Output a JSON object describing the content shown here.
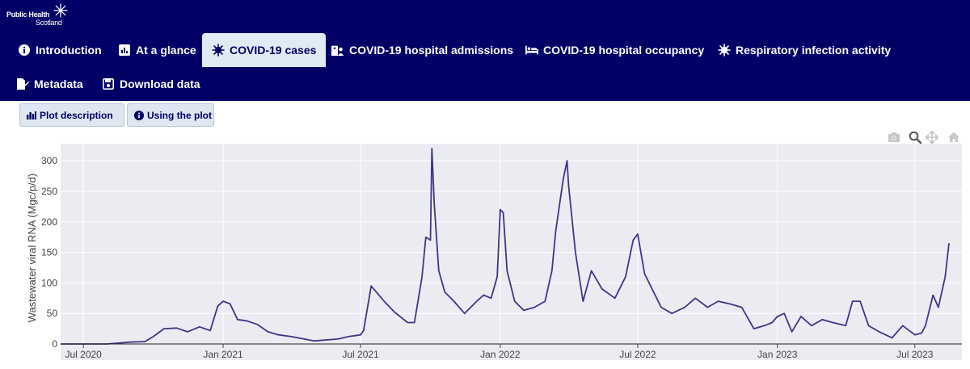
{
  "logo": {
    "line1": "Public Health",
    "line2": "Scotland"
  },
  "tabs": [
    {
      "label": "Introduction",
      "icon": "info-circle-icon",
      "active": false
    },
    {
      "label": "At a glance",
      "icon": "chart-square-icon",
      "active": false
    },
    {
      "label": "COVID-19 cases",
      "icon": "virus-icon",
      "active": true
    },
    {
      "label": "COVID-19 hospital admissions",
      "icon": "hospital-user-icon",
      "active": false
    },
    {
      "label": "COVID-19 hospital occupancy",
      "icon": "bed-icon",
      "active": false
    },
    {
      "label": "Respiratory infection activity",
      "icon": "virus-icon",
      "active": false
    },
    {
      "label": "Metadata",
      "icon": "file-signature-icon",
      "active": false
    },
    {
      "label": "Download data",
      "icon": "floppy-disk-icon",
      "active": false
    }
  ],
  "plot_buttons": {
    "description": "Plot description",
    "using": "Using the plot"
  },
  "modebar": [
    "camera-icon",
    "zoom-icon",
    "pan-icon",
    "home-icon"
  ],
  "colors": {
    "header_bg": "#010066",
    "active_tab_bg": "#dfeaf5",
    "line": "#3f3685",
    "plot_bg": "#ebebf2"
  },
  "chart_data": {
    "type": "line",
    "title": "",
    "xlabel": "",
    "ylabel": "Wastewater viral RNA (Mgc/p/d)",
    "ylim": [
      0,
      320
    ],
    "yticks": [
      0,
      50,
      100,
      150,
      200,
      250,
      300
    ],
    "xlim": [
      "2020-06-01",
      "2023-09-01"
    ],
    "xticks": [
      {
        "date": "2020-07-01",
        "label": "Jul 2020"
      },
      {
        "date": "2021-01-01",
        "label": "Jan 2021"
      },
      {
        "date": "2021-07-01",
        "label": "Jul 2021"
      },
      {
        "date": "2022-01-01",
        "label": "Jan 2022"
      },
      {
        "date": "2022-07-01",
        "label": "Jul 2022"
      },
      {
        "date": "2023-01-01",
        "label": "Jan 2023"
      },
      {
        "date": "2023-07-01",
        "label": "Jul 2023"
      }
    ],
    "grid": true,
    "series": [
      {
        "name": "",
        "x": [
          "2020-06-01",
          "2020-07-01",
          "2020-08-01",
          "2020-09-01",
          "2020-09-20",
          "2020-10-01",
          "2020-10-15",
          "2020-11-01",
          "2020-11-15",
          "2020-12-01",
          "2020-12-15",
          "2020-12-25",
          "2021-01-01",
          "2021-01-10",
          "2021-01-20",
          "2021-02-01",
          "2021-02-15",
          "2021-03-01",
          "2021-03-15",
          "2021-04-01",
          "2021-05-01",
          "2021-06-01",
          "2021-06-15",
          "2021-07-01",
          "2021-07-05",
          "2021-07-15",
          "2021-08-01",
          "2021-08-15",
          "2021-09-01",
          "2021-09-10",
          "2021-09-20",
          "2021-09-25",
          "2021-10-01",
          "2021-10-03",
          "2021-10-06",
          "2021-10-12",
          "2021-10-20",
          "2021-11-01",
          "2021-11-15",
          "2021-12-01",
          "2021-12-10",
          "2021-12-20",
          "2021-12-28",
          "2022-01-01",
          "2022-01-05",
          "2022-01-10",
          "2022-01-20",
          "2022-02-01",
          "2022-02-15",
          "2022-03-01",
          "2022-03-10",
          "2022-03-15",
          "2022-03-25",
          "2022-03-30",
          "2022-04-01",
          "2022-04-10",
          "2022-04-20",
          "2022-05-01",
          "2022-05-15",
          "2022-06-01",
          "2022-06-15",
          "2022-06-25",
          "2022-07-01",
          "2022-07-10",
          "2022-07-20",
          "2022-08-01",
          "2022-08-15",
          "2022-09-01",
          "2022-09-15",
          "2022-10-01",
          "2022-10-15",
          "2022-11-01",
          "2022-11-15",
          "2022-12-01",
          "2022-12-15",
          "2022-12-25",
          "2023-01-01",
          "2023-01-10",
          "2023-01-20",
          "2023-02-01",
          "2023-02-15",
          "2023-03-01",
          "2023-03-15",
          "2023-04-01",
          "2023-04-10",
          "2023-04-20",
          "2023-05-01",
          "2023-05-15",
          "2023-06-01",
          "2023-06-15",
          "2023-07-01",
          "2023-07-10",
          "2023-07-15",
          "2023-07-25",
          "2023-08-01",
          "2023-08-10",
          "2023-08-15"
        ],
        "y": [
          0,
          0,
          0,
          3,
          4,
          12,
          25,
          26,
          20,
          28,
          22,
          62,
          70,
          66,
          40,
          38,
          32,
          20,
          15,
          12,
          5,
          8,
          12,
          15,
          22,
          95,
          70,
          52,
          35,
          35,
          110,
          175,
          170,
          320,
          230,
          120,
          85,
          70,
          50,
          70,
          80,
          75,
          110,
          220,
          215,
          120,
          70,
          55,
          60,
          70,
          120,
          185,
          270,
          300,
          260,
          150,
          70,
          120,
          90,
          75,
          110,
          170,
          180,
          115,
          90,
          60,
          50,
          60,
          75,
          60,
          70,
          65,
          60,
          25,
          30,
          35,
          45,
          50,
          20,
          45,
          30,
          40,
          35,
          30,
          70,
          70,
          30,
          20,
          10,
          30,
          15,
          18,
          30,
          80,
          60,
          110,
          165
        ]
      }
    ]
  }
}
